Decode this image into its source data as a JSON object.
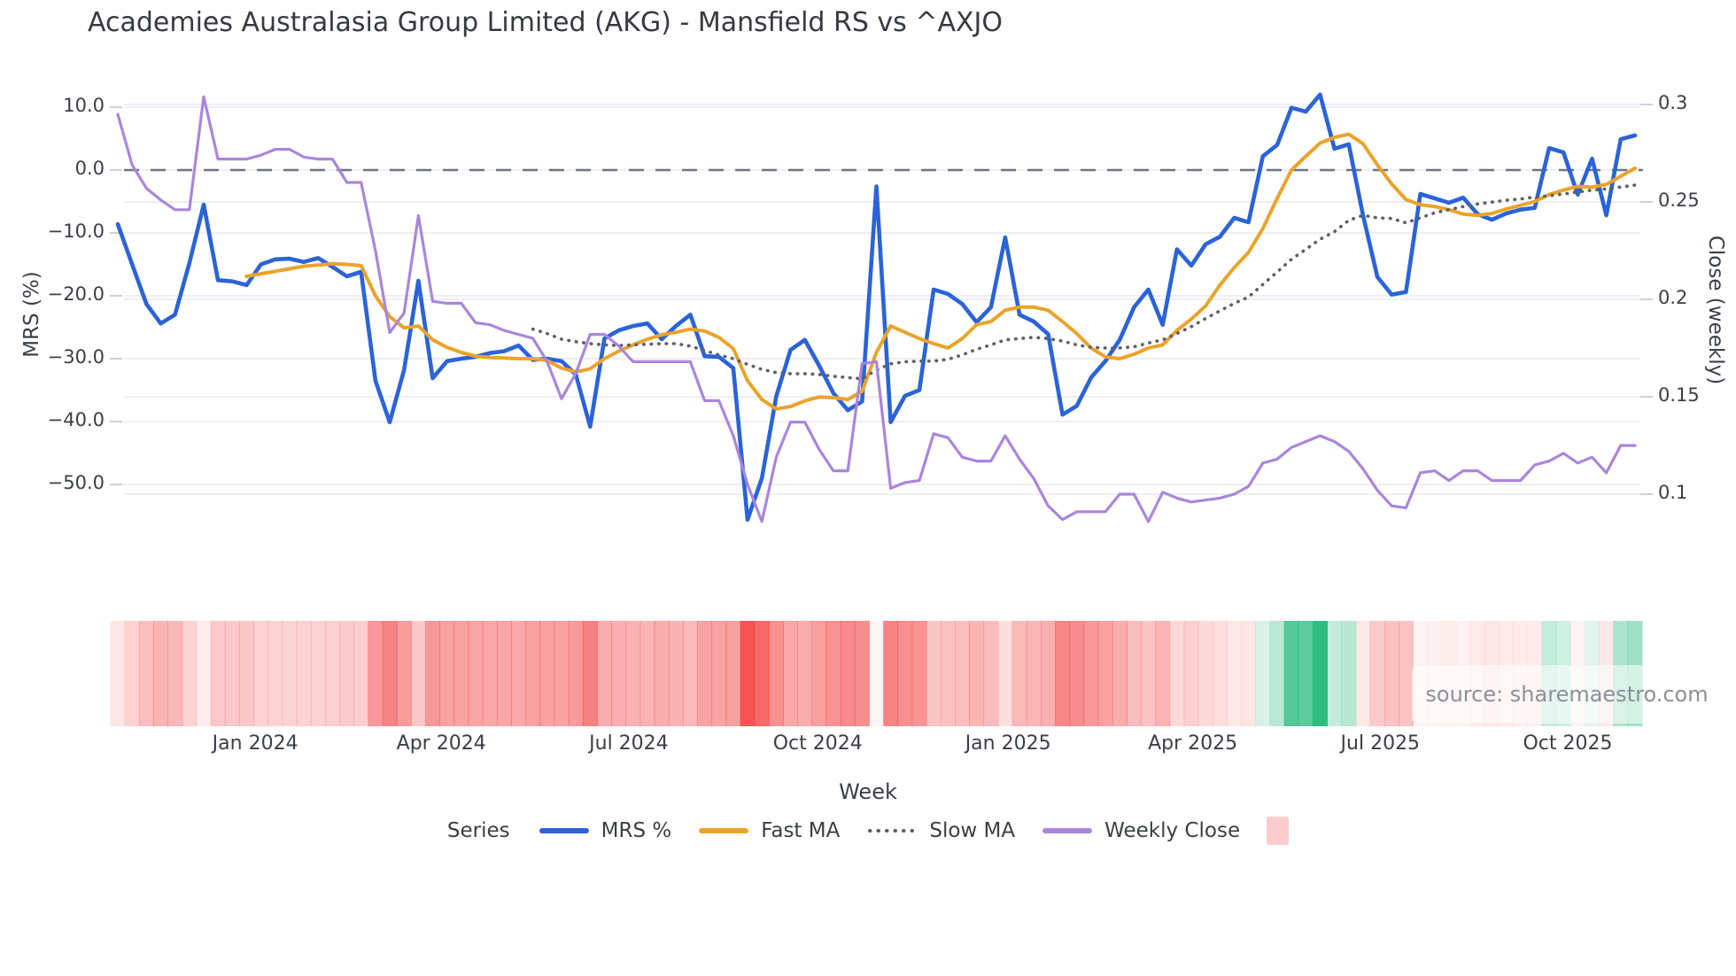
{
  "title": "Academies Australasia Group Limited (AKG) - Mansfield RS vs ^AXJO",
  "source": "source: sharemaestro.com",
  "chart_data": {
    "type": "line",
    "title": "Academies Australasia Group Limited (AKG) - Mansfield RS vs ^AXJO",
    "xlabel": "Week",
    "ylabel_left": "MRS (%)",
    "ylabel_right": "Close (weekly)",
    "legend_title": "Series",
    "grid": true,
    "weeks": 107,
    "x_tick_labels": [
      "Jan 2024",
      "Apr 2024",
      "Jul 2024",
      "Oct 2024",
      "Jan 2025",
      "Apr 2025",
      "Jul 2025",
      "Oct 2025"
    ],
    "x_tick_week_index": [
      9.6,
      22.6,
      35.7,
      48.9,
      62.2,
      75.1,
      88.2,
      101.3
    ],
    "y_left_ticks": [
      {
        "label": "10.0",
        "value": 10
      },
      {
        "label": "0.0",
        "value": 0
      },
      {
        "label": "−10.0",
        "value": -10
      },
      {
        "label": "−20.0",
        "value": -20
      },
      {
        "label": "−30.0",
        "value": -30
      },
      {
        "label": "−40.0",
        "value": -40
      },
      {
        "label": "−50.0",
        "value": -50
      }
    ],
    "y_right_ticks": [
      {
        "label": "0.3",
        "value": 0.3
      },
      {
        "label": "0.25",
        "value": 0.25
      },
      {
        "label": "0.2",
        "value": 0.2
      },
      {
        "label": "0.15",
        "value": 0.15
      },
      {
        "label": "0.1",
        "value": 0.1
      }
    ],
    "ylim_left": [
      -58,
      13
    ],
    "ylim_right": [
      0.085,
      0.31
    ],
    "zero_line_value": 0,
    "zero_line_color": "#6e7480",
    "grid_color": "#edeff5",
    "series": [
      {
        "name": "MRS %",
        "axis": "left",
        "color": "#2b63d8",
        "width": 4.6,
        "style": "solid",
        "values": [
          -8.6,
          -15.0,
          -21.3,
          -24.4,
          -23.0,
          -14.8,
          -5.5,
          -17.5,
          -17.7,
          -18.3,
          -15.0,
          -14.2,
          -14.1,
          -14.6,
          -14.0,
          -15.4,
          -16.9,
          -16.2,
          -33.5,
          -40.1,
          -31.8,
          -17.6,
          -33.1,
          -30.4,
          -30.0,
          -29.7,
          -29.1,
          -28.8,
          -27.9,
          -30.2,
          -30.0,
          -30.4,
          -32.5,
          -40.8,
          -26.8,
          -25.5,
          -24.8,
          -24.4,
          -26.9,
          -24.8,
          -23.0,
          -29.6,
          -29.7,
          -31.5,
          -55.6,
          -49.0,
          -36.0,
          -28.6,
          -27.0,
          -31.1,
          -35.5,
          -38.2,
          -36.8,
          -2.6,
          -40.1,
          -35.9,
          -35.0,
          -19.0,
          -19.7,
          -21.3,
          -24.2,
          -21.8,
          -10.7,
          -23.0,
          -24.1,
          -26.1,
          -38.9,
          -37.5,
          -33.0,
          -30.4,
          -27.0,
          -21.8,
          -19.0,
          -24.6,
          -12.6,
          -15.2,
          -11.8,
          -10.6,
          -7.6,
          -8.3,
          2.2,
          4.0,
          9.9,
          9.3,
          12.0,
          3.4,
          4.1,
          -7.2,
          -17.0,
          -19.8,
          -19.4,
          -3.8,
          -4.5,
          -5.2,
          -4.4,
          -7.0,
          -7.9,
          -6.9,
          -6.3,
          -6.0,
          3.5,
          2.8,
          -3.9,
          1.8,
          -7.2,
          4.9,
          5.5
        ]
      },
      {
        "name": "Fast MA",
        "axis": "left",
        "color": "#eba32b",
        "width": 4.0,
        "style": "solid",
        "values": [
          null,
          null,
          null,
          null,
          null,
          null,
          null,
          null,
          null,
          -16.9,
          -16.5,
          -16.1,
          -15.7,
          -15.3,
          -15.1,
          -14.9,
          -15.0,
          -15.2,
          -20.0,
          -23.3,
          -25.1,
          -24.8,
          -27.0,
          -28.2,
          -29.0,
          -29.6,
          -29.8,
          -29.9,
          -30.0,
          -30.0,
          -30.3,
          -31.5,
          -32.1,
          -31.6,
          -30.0,
          -28.8,
          -27.8,
          -26.9,
          -26.2,
          -25.8,
          -25.3,
          -25.6,
          -26.6,
          -28.4,
          -33.5,
          -36.5,
          -38.0,
          -37.6,
          -36.7,
          -36.1,
          -36.2,
          -36.5,
          -35.2,
          -29.0,
          -24.8,
          -25.8,
          -26.8,
          -27.6,
          -28.3,
          -26.8,
          -24.6,
          -24.1,
          -22.3,
          -21.8,
          -21.8,
          -22.3,
          -24.1,
          -26.0,
          -28.3,
          -29.7,
          -30.0,
          -29.3,
          -28.3,
          -27.8,
          -25.5,
          -23.7,
          -21.6,
          -18.3,
          -15.5,
          -13.1,
          -9.3,
          -4.5,
          0.0,
          2.2,
          4.3,
          5.2,
          5.7,
          4.2,
          0.8,
          -2.2,
          -4.7,
          -5.5,
          -5.8,
          -6.3,
          -7.0,
          -7.2,
          -6.9,
          -6.2,
          -5.6,
          -5.0,
          -3.9,
          -3.2,
          -2.6,
          -2.7,
          -2.3,
          -1.0,
          0.3
        ]
      },
      {
        "name": "Slow MA",
        "axis": "left",
        "color": "#5d6167",
        "width": 3.6,
        "style": "dotted",
        "values": [
          null,
          null,
          null,
          null,
          null,
          null,
          null,
          null,
          null,
          null,
          null,
          null,
          null,
          null,
          null,
          null,
          null,
          null,
          null,
          null,
          null,
          null,
          null,
          null,
          null,
          null,
          null,
          null,
          null,
          -25.3,
          -26.0,
          -26.9,
          -27.3,
          -27.6,
          -27.8,
          -27.9,
          -27.8,
          -27.7,
          -27.6,
          -27.6,
          -28.0,
          -28.7,
          -29.4,
          -30.0,
          -30.9,
          -31.7,
          -32.2,
          -32.4,
          -32.4,
          -32.5,
          -32.8,
          -33.0,
          -33.2,
          -31.8,
          -30.8,
          -30.5,
          -30.4,
          -30.4,
          -30.1,
          -29.4,
          -28.5,
          -27.8,
          -27.0,
          -26.8,
          -26.6,
          -26.8,
          -27.2,
          -27.8,
          -28.2,
          -28.3,
          -28.3,
          -28.1,
          -27.5,
          -27.0,
          -26.0,
          -24.9,
          -23.6,
          -22.4,
          -21.2,
          -20.2,
          -18.2,
          -16.2,
          -14.2,
          -12.6,
          -11.0,
          -9.8,
          -8.0,
          -7.2,
          -7.6,
          -7.7,
          -8.4,
          -7.6,
          -6.8,
          -6.3,
          -5.8,
          -5.4,
          -5.1,
          -4.8,
          -4.6,
          -4.3,
          -4.1,
          -3.8,
          -3.5,
          -3.2,
          -3.0,
          -2.7,
          -2.4
        ]
      },
      {
        "name": "Weekly Close",
        "axis": "right",
        "color": "#a986dc",
        "width": 3.2,
        "style": "solid",
        "values": [
          0.295,
          0.269,
          0.257,
          0.251,
          0.246,
          0.246,
          0.304,
          0.272,
          0.272,
          0.272,
          0.274,
          0.277,
          0.277,
          0.273,
          0.272,
          0.272,
          0.26,
          0.26,
          0.225,
          0.183,
          0.193,
          0.243,
          0.199,
          0.198,
          0.198,
          0.188,
          0.187,
          0.184,
          0.182,
          0.18,
          0.168,
          0.149,
          0.162,
          0.182,
          0.182,
          0.176,
          0.168,
          0.168,
          0.168,
          0.168,
          0.168,
          0.148,
          0.148,
          0.13,
          0.105,
          0.086,
          0.119,
          0.137,
          0.137,
          0.123,
          0.112,
          0.112,
          0.167,
          0.168,
          0.103,
          0.106,
          0.107,
          0.131,
          0.129,
          0.119,
          0.117,
          0.117,
          0.13,
          0.118,
          0.108,
          0.094,
          0.087,
          0.091,
          0.091,
          0.091,
          0.1,
          0.1,
          0.086,
          0.101,
          0.098,
          0.096,
          0.097,
          0.098,
          0.1,
          0.104,
          0.116,
          0.118,
          0.124,
          0.127,
          0.13,
          0.127,
          0.122,
          0.113,
          0.102,
          0.094,
          0.093,
          0.111,
          0.112,
          0.107,
          0.112,
          0.112,
          0.107,
          0.107,
          0.107,
          0.115,
          0.117,
          0.121,
          0.116,
          0.119,
          0.111,
          0.125,
          0.125
        ]
      }
    ],
    "heatmap": {
      "description": "weekly strip colored by MRS % sign and magnitude",
      "negative_rgb": "243,80,80",
      "positive_rgb": "38,185,125",
      "negative_scale": 57,
      "positive_scale": 12.5,
      "legend_swatch": "rgba(240,110,110,0.35)"
    }
  }
}
